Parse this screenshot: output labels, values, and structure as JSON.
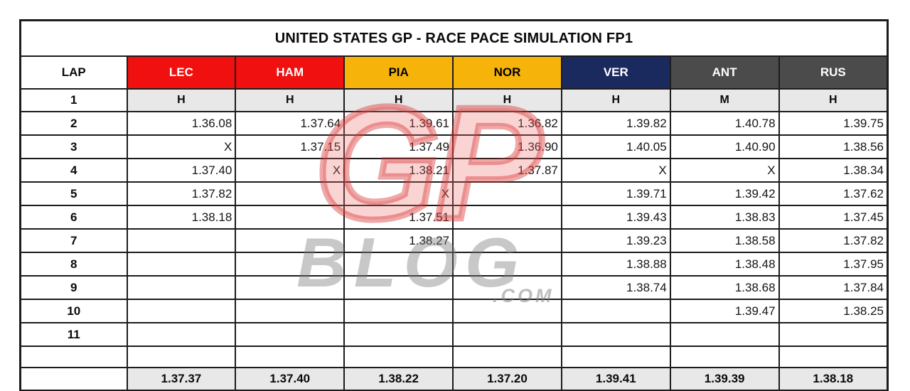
{
  "chart_data": {
    "type": "table",
    "title": "UNITED STATES GP - RACE PACE SIMULATION FP1",
    "lap_header": "LAP",
    "drivers": [
      {
        "code": "LEC",
        "team_color": "#F01010",
        "text_color": "#FFFFFF"
      },
      {
        "code": "HAM",
        "team_color": "#F01010",
        "text_color": "#FFFFFF"
      },
      {
        "code": "PIA",
        "team_color": "#F6B40A",
        "text_color": "#000000"
      },
      {
        "code": "NOR",
        "team_color": "#F6B40A",
        "text_color": "#000000"
      },
      {
        "code": "VER",
        "team_color": "#1B2A5E",
        "text_color": "#FFFFFF"
      },
      {
        "code": "ANT",
        "team_color": "#4B4B4B",
        "text_color": "#FFFFFF"
      },
      {
        "code": "RUS",
        "team_color": "#4B4B4B",
        "text_color": "#FFFFFF"
      }
    ],
    "rows": [
      {
        "lap": "1",
        "kind": "compound",
        "values": [
          "H",
          "H",
          "H",
          "H",
          "H",
          "M",
          "H"
        ]
      },
      {
        "lap": "2",
        "kind": "time",
        "values": [
          "1.36.08",
          "1.37.64",
          "1.39.61",
          "1.36.82",
          "1.39.82",
          "1.40.78",
          "1.39.75"
        ]
      },
      {
        "lap": "3",
        "kind": "time",
        "values": [
          "X",
          "1.37.15",
          "1.37.49",
          "1.36.90",
          "1.40.05",
          "1.40.90",
          "1.38.56"
        ]
      },
      {
        "lap": "4",
        "kind": "time",
        "values": [
          "1.37.40",
          "X",
          "1.38.21",
          "1.37.87",
          "X",
          "X",
          "1.38.34"
        ]
      },
      {
        "lap": "5",
        "kind": "time",
        "values": [
          "1.37.82",
          "",
          "X",
          "",
          "1.39.71",
          "1.39.42",
          "1.37.62"
        ]
      },
      {
        "lap": "6",
        "kind": "time",
        "values": [
          "1.38.18",
          "",
          "1.37.51",
          "",
          "1.39.43",
          "1.38.83",
          "1.37.45"
        ]
      },
      {
        "lap": "7",
        "kind": "time",
        "values": [
          "",
          "",
          "1.38.27",
          "",
          "1.39.23",
          "1.38.58",
          "1.37.82"
        ]
      },
      {
        "lap": "8",
        "kind": "time",
        "values": [
          "",
          "",
          "",
          "",
          "1.38.88",
          "1.38.48",
          "1.37.95"
        ]
      },
      {
        "lap": "9",
        "kind": "time",
        "values": [
          "",
          "",
          "",
          "",
          "1.38.74",
          "1.38.68",
          "1.37.84"
        ]
      },
      {
        "lap": "10",
        "kind": "time",
        "values": [
          "",
          "",
          "",
          "",
          "",
          "1.39.47",
          "1.38.25"
        ]
      },
      {
        "lap": "11",
        "kind": "time",
        "values": [
          "",
          "",
          "",
          "",
          "",
          "",
          ""
        ]
      },
      {
        "lap": "",
        "kind": "spacer",
        "values": [
          "",
          "",
          "",
          "",
          "",
          "",
          ""
        ]
      }
    ],
    "average_row": {
      "lap": "",
      "values": [
        "1.37.37",
        "1.37.40",
        "1.38.22",
        "1.37.20",
        "1.39.41",
        "1.39.39",
        "1.38.18"
      ]
    }
  },
  "watermark": {
    "top_text": "GP",
    "middle_text": "BLOG",
    "bottom_text": ".COM"
  },
  "colors": {
    "grid": "#1C1C1C",
    "compound_bg": "#E8E8E8",
    "average_bg": "#E8E8E8",
    "page_bg": "#FFFFFF",
    "ferrari_red": "#F01010",
    "mclaren_gold": "#F6B40A",
    "redbull_navy": "#1B2A5E",
    "mercedes_gray": "#4B4B4B"
  }
}
